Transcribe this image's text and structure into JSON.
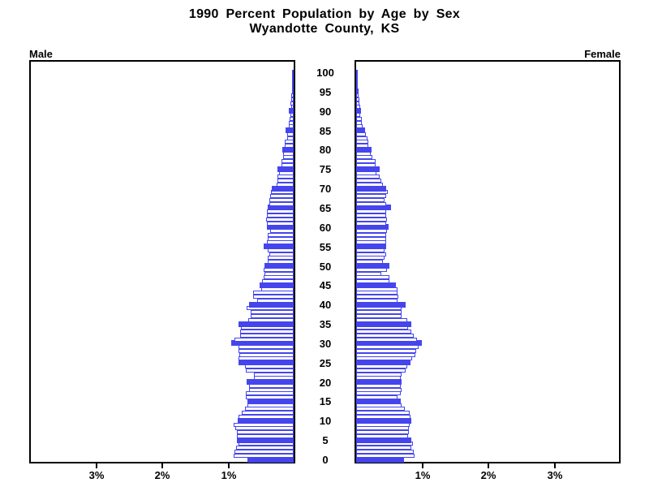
{
  "title": {
    "line1": "1990 Percent Population by Age by Sex",
    "line2": "Wyandotte County, KS"
  },
  "axis": {
    "left_label": "Male",
    "right_label": "Female",
    "left_tick_labels": [
      "3%",
      "2%",
      "1%"
    ],
    "right_tick_labels": [
      "1%",
      "2%",
      "3%"
    ],
    "age_tick_values": [
      0,
      5,
      10,
      15,
      20,
      25,
      30,
      35,
      40,
      45,
      50,
      55,
      60,
      65,
      70,
      75,
      80,
      85,
      90,
      95,
      100
    ]
  },
  "colors": {
    "bar_blue": "#4545ee",
    "bar_outline": "#4545ee",
    "axis_black": "#000000",
    "background": "#ffffff"
  },
  "chart_data": {
    "type": "bar",
    "subtype": "population-pyramid",
    "title": "1990 Percent Population by Age by Sex",
    "subtitle": "Wyandotte County, KS",
    "left_series": "Male",
    "right_series": "Female",
    "unit": "percent of population",
    "ages_start": 0,
    "ages_end": 100,
    "highlight_interval": 5,
    "xlim_percent": 4,
    "x_tick_percents": [
      1,
      2,
      3
    ],
    "male_percent_by_age": [
      0.7,
      0.91,
      0.9,
      0.87,
      0.84,
      0.86,
      0.86,
      0.86,
      0.88,
      0.91,
      0.85,
      0.84,
      0.79,
      0.74,
      0.7,
      0.7,
      0.72,
      0.72,
      0.68,
      0.68,
      0.71,
      0.6,
      0.6,
      0.72,
      0.74,
      0.83,
      0.83,
      0.82,
      0.83,
      0.83,
      0.95,
      0.9,
      0.81,
      0.81,
      0.8,
      0.83,
      0.69,
      0.65,
      0.65,
      0.71,
      0.67,
      0.55,
      0.61,
      0.61,
      0.49,
      0.51,
      0.48,
      0.46,
      0.44,
      0.46,
      0.44,
      0.39,
      0.39,
      0.37,
      0.39,
      0.45,
      0.4,
      0.39,
      0.39,
      0.36,
      0.4,
      0.41,
      0.42,
      0.41,
      0.4,
      0.39,
      0.37,
      0.37,
      0.36,
      0.34,
      0.33,
      0.26,
      0.25,
      0.25,
      0.22,
      0.24,
      0.18,
      0.18,
      0.16,
      0.16,
      0.17,
      0.14,
      0.13,
      0.1,
      0.1,
      0.12,
      0.07,
      0.07,
      0.06,
      0.05,
      0.07,
      0.04,
      0.05,
      0.04,
      0.04,
      0.02,
      0.01,
      0.01,
      0.01,
      0.01,
      0.01
    ],
    "female_percent_by_age": [
      0.73,
      0.88,
      0.87,
      0.84,
      0.86,
      0.84,
      0.78,
      0.8,
      0.8,
      0.81,
      0.84,
      0.82,
      0.81,
      0.74,
      0.69,
      0.68,
      0.63,
      0.67,
      0.69,
      0.67,
      0.69,
      0.68,
      0.69,
      0.75,
      0.77,
      0.82,
      0.85,
      0.9,
      0.91,
      0.95,
      0.99,
      0.92,
      0.87,
      0.83,
      0.78,
      0.84,
      0.77,
      0.69,
      0.69,
      0.69,
      0.75,
      0.62,
      0.64,
      0.62,
      0.62,
      0.6,
      0.5,
      0.5,
      0.38,
      0.47,
      0.5,
      0.41,
      0.43,
      0.45,
      0.43,
      0.45,
      0.45,
      0.46,
      0.46,
      0.47,
      0.49,
      0.45,
      0.47,
      0.46,
      0.46,
      0.53,
      0.45,
      0.43,
      0.45,
      0.48,
      0.45,
      0.41,
      0.38,
      0.36,
      0.31,
      0.36,
      0.3,
      0.29,
      0.25,
      0.22,
      0.23,
      0.19,
      0.18,
      0.17,
      0.15,
      0.14,
      0.1,
      0.08,
      0.08,
      0.06,
      0.07,
      0.06,
      0.05,
      0.05,
      0.04,
      0.04,
      0.02,
      0.02,
      0.01,
      0.01,
      0.01
    ]
  }
}
